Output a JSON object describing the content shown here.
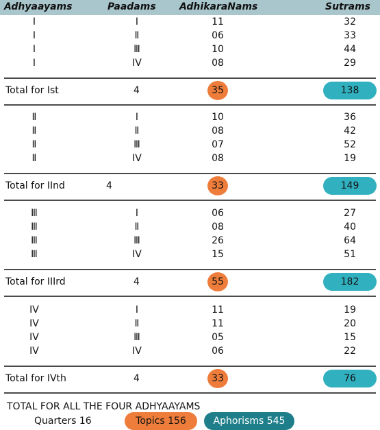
{
  "header": [
    "Adhyaayams",
    "Paadams",
    "AdhikaraNams",
    "Sutrams"
  ],
  "groups": [
    {
      "rows": [
        [
          "I",
          "I",
          "11",
          "32"
        ],
        [
          "I",
          "Ⅱ",
          "06",
          "33"
        ],
        [
          "I",
          "Ⅲ",
          "10",
          "44"
        ],
        [
          "I",
          "IV",
          "08",
          "29"
        ]
      ],
      "total": {
        "label": "Total for Ist",
        "quarters": "4",
        "topics": "35",
        "sutrams": "138"
      }
    },
    {
      "rows": [
        [
          "Ⅱ",
          "I",
          "10",
          "36"
        ],
        [
          "Ⅱ",
          "Ⅱ",
          "08",
          "42"
        ],
        [
          "Ⅱ",
          "Ⅲ",
          "07",
          "52"
        ],
        [
          "Ⅱ",
          "IV",
          "08",
          "19"
        ]
      ],
      "total": {
        "label": "Total for IInd",
        "quarters": "4",
        "topics": "33",
        "sutrams": "149"
      }
    },
    {
      "rows": [
        [
          "Ⅲ",
          "I",
          "06",
          "27"
        ],
        [
          "Ⅲ",
          "Ⅱ",
          "08",
          "40"
        ],
        [
          "Ⅲ",
          "Ⅲ",
          "26",
          "64"
        ],
        [
          "Ⅲ",
          "IV",
          "15",
          "51"
        ]
      ],
      "total": {
        "label": "Total for IIIrd",
        "quarters": "4",
        "topics": "55",
        "sutrams": "182"
      }
    },
    {
      "rows": [
        [
          "IV",
          "I",
          "11",
          "19"
        ],
        [
          "IV",
          "Ⅱ",
          "11",
          "20"
        ],
        [
          "IV",
          "Ⅲ",
          "05",
          "15"
        ],
        [
          "IV",
          "IV",
          "06",
          "22"
        ]
      ],
      "total": {
        "label": "Total for IVth",
        "quarters": "4",
        "topics": "33",
        "sutrams": "76"
      }
    }
  ],
  "summary": {
    "title": "TOTAL FOR ALL THE FOUR ADHYAAYAMS",
    "quarters": "Quarters 16",
    "topics": "Topics 156",
    "aphorisms": "Aphorisms 545"
  }
}
